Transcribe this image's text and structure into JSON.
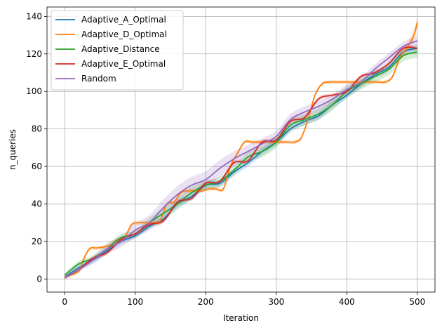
{
  "chart_data": {
    "type": "line",
    "title": "",
    "xlabel": "Iteration",
    "ylabel": "n_queries",
    "xlim": [
      -25,
      525
    ],
    "ylim": [
      -7,
      145
    ],
    "xticks": [
      0,
      100,
      200,
      300,
      400,
      500
    ],
    "yticks": [
      0,
      20,
      40,
      60,
      80,
      100,
      120,
      140
    ],
    "grid": true,
    "legend_position": "top-left",
    "series": [
      {
        "name": "Adaptive_A_Optimal",
        "color": "#1f77b4",
        "x": [
          0,
          20,
          40,
          60,
          80,
          100,
          120,
          140,
          160,
          180,
          200,
          220,
          240,
          260,
          280,
          300,
          320,
          340,
          360,
          380,
          400,
          420,
          440,
          460,
          480,
          500
        ],
        "y": [
          1,
          6,
          10,
          15,
          20,
          23,
          28,
          32,
          40,
          44,
          50,
          51,
          57,
          62,
          68,
          73,
          80,
          84,
          87,
          93,
          98,
          104,
          109,
          113,
          121,
          123
        ],
        "band": [
          1,
          1.5,
          1.5,
          1.5,
          1.5,
          1.5,
          1.5,
          2,
          2,
          2,
          2,
          2,
          2,
          2,
          2,
          2,
          2,
          2,
          2,
          2,
          2,
          2,
          2,
          2,
          2,
          2
        ]
      },
      {
        "name": "Adaptive_D_Optimal",
        "color": "#ff7f0e",
        "x": [
          0,
          20,
          25,
          35,
          45,
          55,
          65,
          75,
          85,
          95,
          105,
          115,
          125,
          135,
          145,
          155,
          165,
          175,
          185,
          195,
          205,
          215,
          225,
          235,
          245,
          255,
          265,
          275,
          285,
          295,
          305,
          315,
          325,
          335,
          345,
          355,
          365,
          375,
          385,
          395,
          405,
          415,
          425,
          435,
          445,
          455,
          465,
          475,
          485,
          495,
          500
        ],
        "y": [
          1,
          4,
          9,
          16,
          16.5,
          17,
          18,
          21,
          22,
          29,
          30,
          30,
          30,
          31,
          40,
          41,
          46,
          47,
          47,
          47,
          48,
          48,
          48,
          60,
          67,
          73,
          73,
          73,
          73,
          73,
          73,
          73,
          73,
          75,
          85,
          98,
          104,
          105,
          105,
          105,
          105,
          105,
          105,
          105,
          105,
          105,
          108,
          118,
          123,
          130,
          137
        ],
        "band": [
          1,
          1,
          1,
          1,
          1,
          1,
          1,
          1,
          1,
          1,
          1,
          1,
          1,
          1,
          1,
          1,
          1,
          1,
          1,
          1,
          1,
          1,
          1,
          1,
          1,
          1,
          1,
          1,
          1,
          1,
          1,
          1,
          1,
          1,
          1,
          1,
          1,
          1,
          1,
          1,
          1,
          1,
          1,
          1,
          1,
          1,
          1,
          2,
          2,
          3,
          3
        ]
      },
      {
        "name": "Adaptive_Distance",
        "color": "#2ca02c",
        "x": [
          0,
          20,
          40,
          60,
          80,
          100,
          120,
          140,
          160,
          180,
          200,
          220,
          240,
          260,
          280,
          300,
          320,
          340,
          360,
          380,
          400,
          420,
          440,
          460,
          480,
          500
        ],
        "y": [
          2,
          8,
          11,
          16,
          22,
          24,
          30,
          35,
          40,
          46,
          50,
          52,
          58,
          65,
          68,
          73,
          82,
          85,
          88,
          93,
          100,
          104,
          108,
          112,
          119,
          121
        ],
        "band": [
          1,
          1.5,
          1.5,
          2,
          2,
          2,
          2.5,
          3,
          3,
          3,
          2.5,
          2.5,
          2.5,
          2.5,
          3,
          3,
          3,
          3,
          3,
          3,
          3,
          3,
          3,
          3,
          3,
          3
        ]
      },
      {
        "name": "Adaptive_E_Optimal",
        "color": "#d62728",
        "x": [
          0,
          20,
          40,
          60,
          80,
          100,
          120,
          140,
          160,
          180,
          200,
          220,
          240,
          260,
          280,
          300,
          320,
          340,
          360,
          380,
          400,
          420,
          440,
          460,
          480,
          500
        ],
        "y": [
          0.5,
          5,
          11,
          14,
          21,
          24,
          29,
          31,
          41,
          43,
          51,
          52,
          62,
          63,
          73,
          74,
          84,
          86,
          96,
          98,
          100,
          108,
          110,
          115,
          123,
          123
        ],
        "band": [
          0.5,
          1,
          1,
          1,
          1,
          1,
          1,
          1,
          1,
          1,
          1,
          1,
          1,
          1,
          1,
          1,
          1,
          1,
          1,
          1,
          1,
          1,
          1,
          1,
          1,
          1
        ]
      },
      {
        "name": "Random",
        "color": "#9467bd",
        "x": [
          0,
          20,
          40,
          60,
          80,
          100,
          120,
          140,
          160,
          180,
          200,
          220,
          240,
          260,
          280,
          300,
          320,
          340,
          360,
          380,
          400,
          420,
          440,
          460,
          480,
          500
        ],
        "y": [
          0.5,
          5,
          10,
          16,
          20,
          26,
          30,
          38,
          45,
          50,
          53,
          59,
          64,
          68,
          72,
          76,
          85,
          89,
          92,
          96,
          101,
          105,
          112,
          118,
          124,
          127
        ],
        "band": [
          0.5,
          1,
          2,
          3,
          3,
          3.5,
          4,
          4.5,
          4.5,
          4.5,
          4.5,
          4.5,
          4,
          3.5,
          3,
          3,
          3,
          3,
          3,
          2.5,
          2.5,
          2.5,
          2.5,
          2.5,
          2.5,
          2.5
        ]
      }
    ]
  }
}
